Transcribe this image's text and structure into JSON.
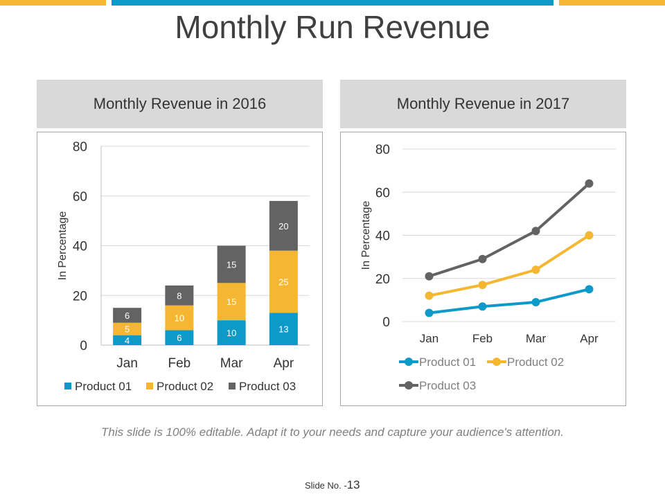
{
  "title": "Monthly Run Revenue",
  "footnote": "This slide is 100% editable. Adapt it to your needs and capture your audience's attention.",
  "slide": {
    "label": "Slide No. -",
    "number": "13"
  },
  "colors": {
    "accent_yellow": "#f5b731",
    "accent_blue": "#0e9ac8",
    "product_01": "#0e9ac8",
    "product_02": "#f5b731",
    "product_03": "#636363"
  },
  "chart_data": [
    {
      "type": "bar",
      "stacked": true,
      "title": "Monthly Revenue in 2016",
      "categories": [
        "Jan",
        "Feb",
        "Mar",
        "Apr"
      ],
      "series": [
        {
          "name": "Product 01",
          "values": [
            4,
            6,
            10,
            13
          ]
        },
        {
          "name": "Product 02",
          "values": [
            5,
            10,
            15,
            25
          ]
        },
        {
          "name": "Product 03",
          "values": [
            6,
            8,
            15,
            20
          ]
        }
      ],
      "ylabel": "In Percentage",
      "xlabel": "",
      "ylim": [
        0,
        80
      ],
      "yticks": [
        0,
        20,
        40,
        60,
        80
      ],
      "grid": true,
      "legend": "bottom"
    },
    {
      "type": "line",
      "title": "Monthly Revenue in 2017",
      "categories": [
        "Jan",
        "Feb",
        "Mar",
        "Apr"
      ],
      "series": [
        {
          "name": "Product 01",
          "values": [
            4,
            7,
            9,
            15
          ]
        },
        {
          "name": "Product 02",
          "values": [
            12,
            17,
            24,
            40
          ]
        },
        {
          "name": "Product 03",
          "values": [
            21,
            29,
            42,
            64
          ]
        }
      ],
      "ylabel": "In Percentage",
      "xlabel": "",
      "ylim": [
        0,
        80
      ],
      "yticks": [
        0,
        20,
        40,
        60,
        80
      ],
      "grid": true,
      "legend": "bottom"
    }
  ]
}
